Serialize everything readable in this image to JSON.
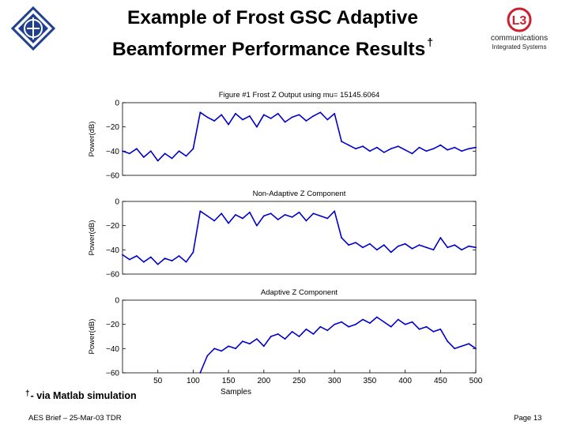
{
  "slide": {
    "title_line1": "Example of Frost GSC Adaptive",
    "title_line2": "Beamformer Performance Results",
    "title_dagger": "†",
    "footnote_dagger": "†",
    "footnote": "- via Matlab simulation",
    "footer_left": "AES Brief – 25-Mar-03  TDR",
    "footer_right": "Page 13"
  },
  "logo_right": {
    "mark": "L3",
    "line1": "communications",
    "line2": "Integrated Systems",
    "color": "#cc1f2f"
  },
  "logo_left": {
    "icon": "diamond-emblem-icon",
    "color": "#1f3f8f"
  },
  "colors": {
    "series": "#0000cc",
    "axes": "#000000"
  },
  "chart_data": [
    {
      "type": "line",
      "title": "Figure #1     Frost Z Output using mu= 15145.6064",
      "ylabel": "Power(dB)",
      "xlabel": "",
      "xlim": [
        0,
        500
      ],
      "ylim": [
        -60,
        0
      ],
      "yticks": [
        0,
        -20,
        -40,
        -60
      ],
      "xticks": [],
      "series": [
        {
          "x": [
            0,
            10,
            20,
            30,
            40,
            50,
            60,
            70,
            80,
            90,
            100,
            110,
            120,
            130,
            140,
            150,
            160,
            170,
            180,
            190,
            200,
            210,
            220,
            230,
            240,
            250,
            260,
            270,
            280,
            290,
            300,
            310,
            320,
            330,
            340,
            350,
            360,
            370,
            380,
            390,
            400,
            410,
            420,
            430,
            440,
            450,
            460,
            470,
            480,
            490,
            500
          ],
          "values": [
            -40,
            -42,
            -38,
            -45,
            -40,
            -48,
            -42,
            -46,
            -40,
            -44,
            -38,
            -8,
            -12,
            -15,
            -10,
            -18,
            -9,
            -14,
            -11,
            -20,
            -10,
            -13,
            -9,
            -16,
            -12,
            -10,
            -15,
            -11,
            -8,
            -14,
            -9,
            -32,
            -35,
            -38,
            -36,
            -40,
            -37,
            -41,
            -38,
            -36,
            -39,
            -42,
            -37,
            -40,
            -38,
            -35,
            -39,
            -37,
            -40,
            -38,
            -37
          ]
        }
      ]
    },
    {
      "type": "line",
      "title": "Non-Adaptive Z Component",
      "ylabel": "Power(dB)",
      "xlabel": "",
      "xlim": [
        0,
        500
      ],
      "ylim": [
        -60,
        0
      ],
      "yticks": [
        0,
        -20,
        -40,
        -60
      ],
      "xticks": [],
      "series": [
        {
          "x": [
            0,
            10,
            20,
            30,
            40,
            50,
            60,
            70,
            80,
            90,
            100,
            110,
            120,
            130,
            140,
            150,
            160,
            170,
            180,
            190,
            200,
            210,
            220,
            230,
            240,
            250,
            260,
            270,
            280,
            290,
            300,
            310,
            320,
            330,
            340,
            350,
            360,
            370,
            380,
            390,
            400,
            410,
            420,
            430,
            440,
            450,
            460,
            470,
            480,
            490,
            500
          ],
          "values": [
            -44,
            -48,
            -45,
            -50,
            -46,
            -52,
            -47,
            -49,
            -45,
            -50,
            -42,
            -8,
            -12,
            -16,
            -10,
            -18,
            -11,
            -14,
            -9,
            -20,
            -12,
            -10,
            -15,
            -11,
            -13,
            -9,
            -16,
            -10,
            -12,
            -14,
            -8,
            -30,
            -36,
            -34,
            -38,
            -35,
            -40,
            -36,
            -42,
            -37,
            -35,
            -39,
            -36,
            -38,
            -40,
            -30,
            -38,
            -36,
            -40,
            -37,
            -38
          ]
        }
      ]
    },
    {
      "type": "line",
      "title": "Adaptive Z Component",
      "ylabel": "Power(dB)",
      "xlabel": "Samples",
      "xlim": [
        0,
        500
      ],
      "ylim": [
        -60,
        0
      ],
      "yticks": [
        0,
        -20,
        -40,
        -60
      ],
      "xticks": [
        50,
        100,
        150,
        200,
        250,
        300,
        350,
        400,
        450,
        500
      ],
      "series": [
        {
          "x": [
            110,
            120,
            130,
            140,
            150,
            160,
            170,
            180,
            190,
            200,
            210,
            220,
            230,
            240,
            250,
            260,
            270,
            280,
            290,
            300,
            310,
            320,
            330,
            340,
            350,
            360,
            370,
            380,
            390,
            400,
            410,
            420,
            430,
            440,
            450,
            460,
            470,
            480,
            490,
            500
          ],
          "values": [
            -60,
            -46,
            -40,
            -42,
            -38,
            -40,
            -34,
            -36,
            -32,
            -38,
            -30,
            -28,
            -32,
            -26,
            -30,
            -24,
            -28,
            -22,
            -25,
            -20,
            -18,
            -22,
            -20,
            -16,
            -19,
            -14,
            -18,
            -22,
            -16,
            -20,
            -18,
            -24,
            -22,
            -26,
            -24,
            -34,
            -40,
            -38,
            -36,
            -40
          ]
        }
      ]
    }
  ]
}
